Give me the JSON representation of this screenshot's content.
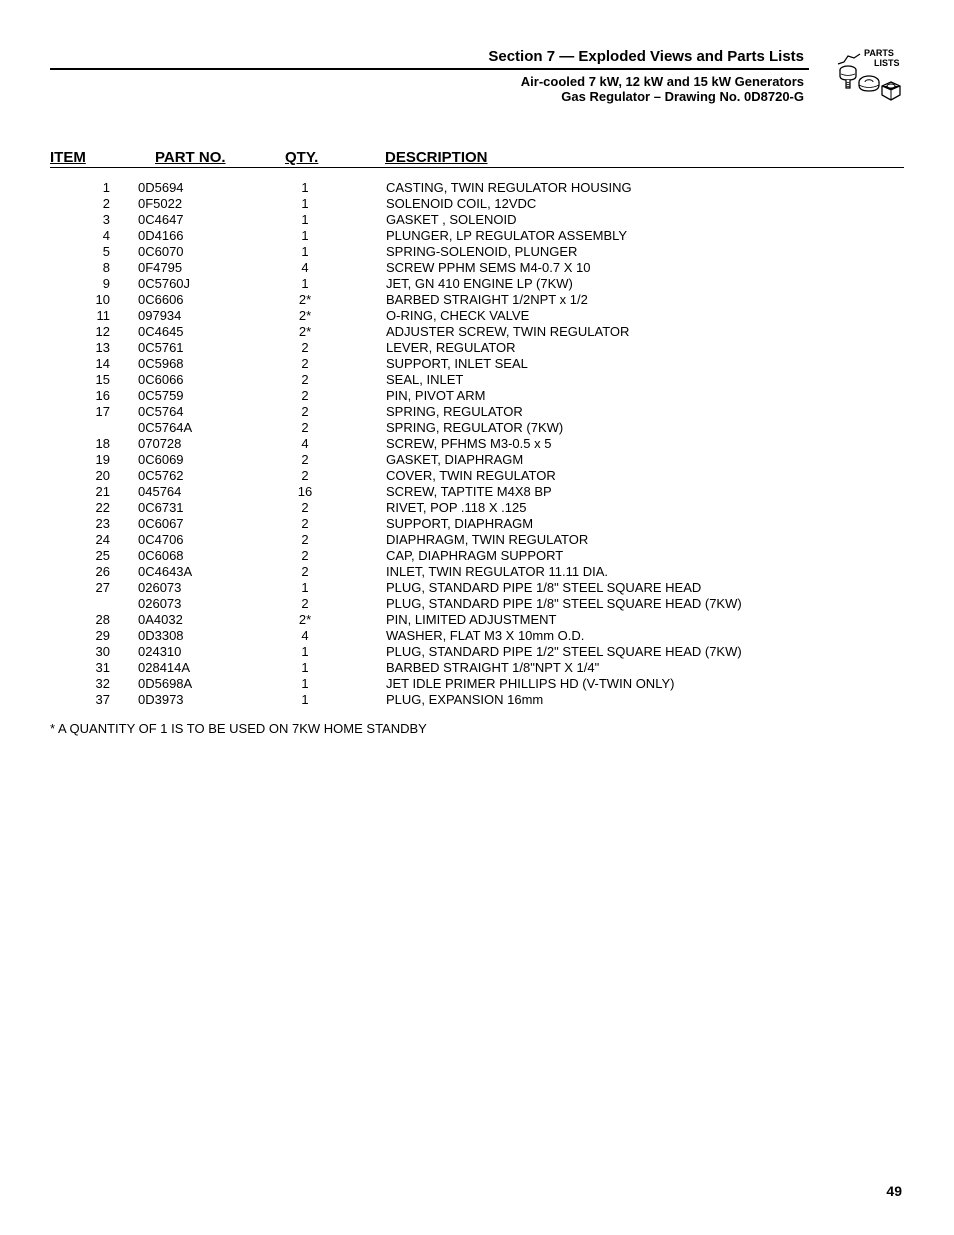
{
  "header": {
    "section_title": "Section 7 — Exploded Views and Parts Lists",
    "subtitle_line1": "Air-cooled 7 kW, 12 kW and 15 kW Generators",
    "subtitle_line2": "Gas Regulator – Drawing No. 0D8720-G",
    "icon_label_1": "PARTS",
    "icon_label_2": "LISTS"
  },
  "columns": {
    "item": "ITEM",
    "partno": "PART NO.",
    "qty": "QTY.",
    "description": "DESCRIPTION"
  },
  "rows": [
    {
      "item": "1",
      "partno": "0D5694",
      "qty": "1",
      "desc": "CASTING, TWIN REGULATOR HOUSING"
    },
    {
      "item": "2",
      "partno": "0F5022",
      "qty": "1",
      "desc": "SOLENOID COIL, 12VDC"
    },
    {
      "item": "3",
      "partno": "0C4647",
      "qty": "1",
      "desc": "GASKET , SOLENOID"
    },
    {
      "item": "4",
      "partno": "0D4166",
      "qty": "1",
      "desc": "PLUNGER, LP REGULATOR ASSEMBLY"
    },
    {
      "item": "5",
      "partno": "0C6070",
      "qty": "1",
      "desc": "SPRING-SOLENOID, PLUNGER"
    },
    {
      "item": "8",
      "partno": "0F4795",
      "qty": "4",
      "desc": "SCREW PPHM SEMS M4-0.7 X 10"
    },
    {
      "item": "9",
      "partno": "0C5760J",
      "qty": "1",
      "desc": "JET, GN 410 ENGINE LP (7KW)"
    },
    {
      "item": "10",
      "partno": "0C6606",
      "qty": "2*",
      "desc": "BARBED STRAIGHT 1/2NPT x 1/2"
    },
    {
      "item": "11",
      "partno": "097934",
      "qty": "2*",
      "desc": "O-RING, CHECK VALVE"
    },
    {
      "item": "12",
      "partno": "0C4645",
      "qty": "2*",
      "desc": "ADJUSTER SCREW, TWIN REGULATOR"
    },
    {
      "item": "13",
      "partno": "0C5761",
      "qty": "2",
      "desc": "LEVER, REGULATOR"
    },
    {
      "item": "14",
      "partno": "0C5968",
      "qty": "2",
      "desc": "SUPPORT, INLET SEAL"
    },
    {
      "item": "15",
      "partno": "0C6066",
      "qty": "2",
      "desc": "SEAL, INLET"
    },
    {
      "item": "16",
      "partno": "0C5759",
      "qty": "2",
      "desc": "PIN, PIVOT ARM"
    },
    {
      "item": "17",
      "partno": "0C5764",
      "qty": "2",
      "desc": "SPRING, REGULATOR"
    },
    {
      "item": "",
      "partno": "0C5764A",
      "qty": "2",
      "desc": "SPRING, REGULATOR (7KW)"
    },
    {
      "item": "18",
      "partno": "070728",
      "qty": "4",
      "desc": "SCREW, PFHMS M3-0.5 x 5"
    },
    {
      "item": "19",
      "partno": "0C6069",
      "qty": "2",
      "desc": "GASKET, DIAPHRAGM"
    },
    {
      "item": "20",
      "partno": "0C5762",
      "qty": "2",
      "desc": "COVER, TWIN REGULATOR"
    },
    {
      "item": "21",
      "partno": "045764",
      "qty": "16",
      "desc": "SCREW, TAPTITE M4X8 BP"
    },
    {
      "item": "22",
      "partno": "0C6731",
      "qty": "2",
      "desc": "RIVET, POP .118 X .125"
    },
    {
      "item": "23",
      "partno": "0C6067",
      "qty": "2",
      "desc": "SUPPORT, DIAPHRAGM"
    },
    {
      "item": "24",
      "partno": "0C4706",
      "qty": "2",
      "desc": "DIAPHRAGM, TWIN REGULATOR"
    },
    {
      "item": "25",
      "partno": "0C6068",
      "qty": "2",
      "desc": "CAP, DIAPHRAGM SUPPORT"
    },
    {
      "item": "26",
      "partno": "0C4643A",
      "qty": "2",
      "desc": "INLET, TWIN REGULATOR 11.11 DIA."
    },
    {
      "item": "27",
      "partno": "026073",
      "qty": "1",
      "desc": "PLUG, STANDARD PIPE 1/8\" STEEL SQUARE HEAD"
    },
    {
      "item": "",
      "partno": "026073",
      "qty": "2",
      "desc": "PLUG, STANDARD PIPE 1/8\" STEEL SQUARE HEAD (7KW)"
    },
    {
      "item": "28",
      "partno": "0A4032",
      "qty": "2*",
      "desc": "PIN, LIMITED ADJUSTMENT"
    },
    {
      "item": "29",
      "partno": "0D3308",
      "qty": "4",
      "desc": "WASHER, FLAT M3 X 10mm O.D."
    },
    {
      "item": "30",
      "partno": "024310",
      "qty": "1",
      "desc": "PLUG, STANDARD PIPE 1/2\" STEEL SQUARE HEAD (7KW)"
    },
    {
      "item": "31",
      "partno": "028414A",
      "qty": "1",
      "desc": "BARBED STRAIGHT 1/8\"NPT X 1/4\""
    },
    {
      "item": "32",
      "partno": "0D5698A",
      "qty": "1",
      "desc": "JET IDLE PRIMER PHILLIPS HD (V-TWIN ONLY)"
    },
    {
      "item": "37",
      "partno": "0D3973",
      "qty": "1",
      "desc": "PLUG, EXPANSION 16mm"
    }
  ],
  "footnote": "* A QUANTITY OF 1 IS TO BE USED ON 7KW HOME STANDBY",
  "page_number": "49",
  "colors": {
    "text": "#000000",
    "background": "#ffffff",
    "rule": "#000000"
  },
  "typography": {
    "body_fontsize": 13,
    "header_fontsize": 15,
    "section_title_fontsize": 15
  }
}
